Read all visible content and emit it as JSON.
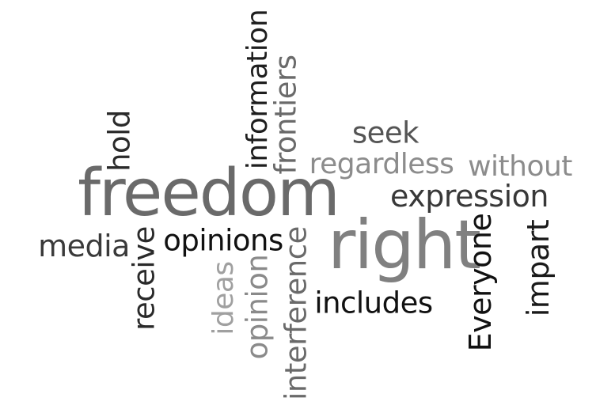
{
  "words": [
    {
      "text": "freedom",
      "color": "#6a6a6a",
      "orientation": "horizontal"
    },
    {
      "text": "right",
      "color": "#808080",
      "orientation": "horizontal"
    },
    {
      "text": "expression",
      "color": "#383838",
      "orientation": "horizontal"
    },
    {
      "text": "opinions",
      "color": "#111111",
      "orientation": "horizontal"
    },
    {
      "text": "includes",
      "color": "#111111",
      "orientation": "horizontal"
    },
    {
      "text": "media",
      "color": "#3a3a3a",
      "orientation": "horizontal"
    },
    {
      "text": "seek",
      "color": "#555555",
      "orientation": "horizontal"
    },
    {
      "text": "regardless",
      "color": "#8c8c8c",
      "orientation": "horizontal"
    },
    {
      "text": "without",
      "color": "#8c8c8c",
      "orientation": "horizontal"
    },
    {
      "text": "information",
      "color": "#1e1e1e",
      "orientation": "vertical"
    },
    {
      "text": "frontiers",
      "color": "#6a6a6a",
      "orientation": "vertical"
    },
    {
      "text": "hold",
      "color": "#2a2a2a",
      "orientation": "vertical"
    },
    {
      "text": "receive",
      "color": "#2a2a2a",
      "orientation": "vertical"
    },
    {
      "text": "ideas",
      "color": "#a0a0a0",
      "orientation": "vertical"
    },
    {
      "text": "opinion",
      "color": "#8a8a8a",
      "orientation": "vertical"
    },
    {
      "text": "interference",
      "color": "#6a6a6a",
      "orientation": "vertical"
    },
    {
      "text": "Everyone",
      "color": "#111111",
      "orientation": "vertical"
    },
    {
      "text": "impart",
      "color": "#1a1a1a",
      "orientation": "vertical"
    }
  ]
}
